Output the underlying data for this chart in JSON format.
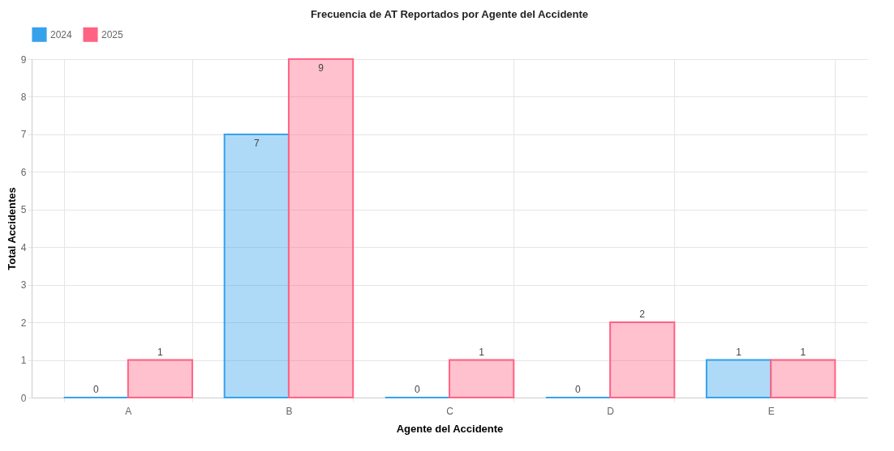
{
  "chart_data": {
    "type": "bar",
    "title": "Frecuencia de AT Reportados por Agente del Accidente",
    "xlabel": "Agente del Accidente",
    "ylabel": "Total Accidentes",
    "categories": [
      "A",
      "B",
      "C",
      "D",
      "E"
    ],
    "series": [
      {
        "name": "2024",
        "color": "#36a2eb",
        "values": [
          0,
          7,
          0,
          0,
          1
        ]
      },
      {
        "name": "2025",
        "color": "#ff6384",
        "values": [
          1,
          9,
          1,
          2,
          1
        ]
      }
    ],
    "ylim": [
      0,
      9
    ],
    "yticks": [
      0,
      1,
      2,
      3,
      4,
      5,
      6,
      7,
      8,
      9
    ],
    "grid": true,
    "legend": "top",
    "data_labels": true
  }
}
